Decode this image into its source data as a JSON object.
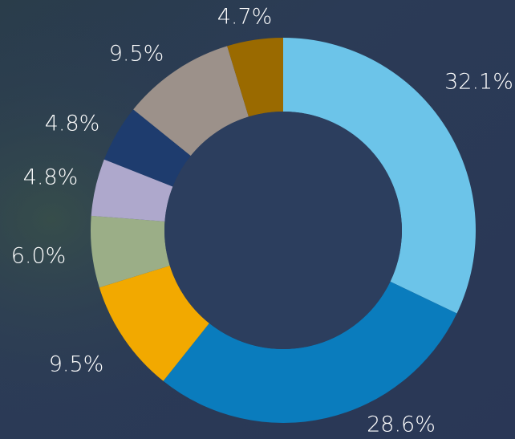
{
  "chart_data": {
    "type": "donut",
    "values": [
      32.1,
      28.6,
      9.5,
      6.0,
      4.8,
      4.8,
      9.5,
      4.7
    ],
    "value_labels": [
      "32.1%",
      "28.6%",
      "9.5%",
      "6.0%",
      "4.8%",
      "4.8%",
      "9.5%",
      "4.7%"
    ],
    "colors": [
      "#6cc4e9",
      "#0a7cbd",
      "#f2a900",
      "#9bae87",
      "#aea8cc",
      "#1e3c6e",
      "#9c918a",
      "#9a6a00"
    ]
  }
}
